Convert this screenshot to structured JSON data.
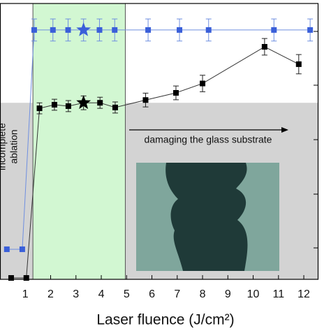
{
  "chart_data": {
    "type": "line",
    "x_label": "Laser fluence (J/cm²)",
    "xlim": [
      0,
      12.55
    ],
    "xticks": [
      1,
      2,
      3,
      4,
      5,
      6,
      7,
      8,
      9,
      10,
      11,
      12
    ],
    "ylim": [
      0,
      100
    ],
    "green_band": {
      "x": [
        1.3,
        4.95
      ],
      "color": "#d2f7d2"
    },
    "gray_region": {
      "below": 64,
      "color": "#d3d3d3"
    },
    "annotations": {
      "arrow_text": "damaging the glass substrate",
      "side_text_1": "incomplete",
      "side_text_2": "ablation"
    },
    "series": [
      {
        "name": "black",
        "color": "#000000",
        "star_index": 5,
        "x": [
          0.44,
          1.04,
          1.56,
          2.15,
          2.7,
          3.3,
          3.95,
          4.55,
          5.75,
          6.95,
          8.0,
          10.45,
          11.8
        ],
        "values": [
          0.5,
          0.5,
          62,
          63.3,
          62.8,
          64,
          64,
          62.3,
          65,
          67.6,
          71,
          84.3,
          78
        ],
        "errors": [
          0,
          0,
          2,
          2,
          2,
          2.5,
          2,
          2,
          2.5,
          2.5,
          3,
          3,
          3.5
        ]
      },
      {
        "name": "blue",
        "color": "#3a5fd9",
        "star_index": 5,
        "x": [
          0.27,
          0.88,
          1.35,
          2.09,
          2.69,
          3.3,
          3.93,
          4.53,
          5.85,
          7.09,
          8.24,
          10.82,
          12.25
        ],
        "values": [
          10.9,
          10.9,
          90.4,
          90.4,
          90.4,
          90.4,
          90.4,
          90.4,
          90.4,
          90.4,
          90.4,
          90.4,
          90.4
        ],
        "errors": [
          0,
          0,
          4,
          4,
          4,
          4,
          4,
          4,
          4,
          4,
          4,
          4,
          4
        ]
      }
    ]
  }
}
